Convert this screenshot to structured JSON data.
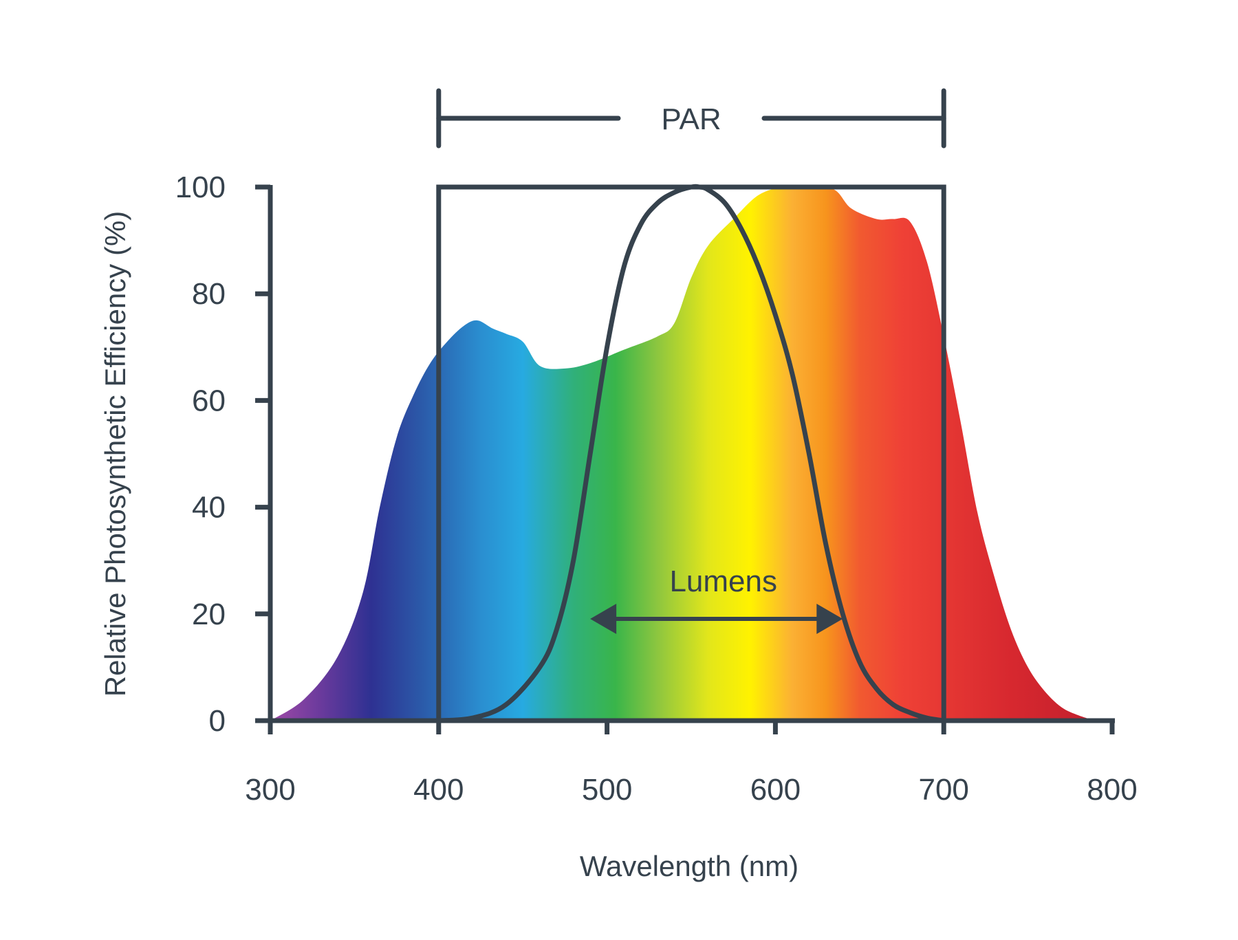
{
  "chart_data": {
    "type": "area",
    "xlabel": "Wavelength (nm)",
    "ylabel": "Relative Photosynthetic Efficiency (%)",
    "xlim": [
      300,
      800
    ],
    "ylim": [
      0,
      100
    ],
    "x_ticks": [
      "300",
      "400",
      "500",
      "600",
      "700",
      "800"
    ],
    "y_ticks": [
      "0",
      "20",
      "40",
      "60",
      "80",
      "100"
    ],
    "grid": false,
    "fill": "visible spectrum gradient (violet to red)",
    "spectrum_colors": [
      "#8e44a6",
      "#2e3192",
      "#2a6bb5",
      "#27a9e1",
      "#39b54a",
      "#8dc63f",
      "#f2e600",
      "#fff200",
      "#f7941d",
      "#ef4136",
      "#be1e2d"
    ],
    "series": [
      {
        "name": "",
        "role": "photosynthetic efficiency (filled area)",
        "x": [
          300,
          320,
          340,
          355,
          365,
          375,
          385,
          395,
          405,
          415,
          423,
          432,
          440,
          450,
          460,
          475,
          490,
          510,
          530,
          540,
          550,
          560,
          575,
          590,
          605,
          620,
          635,
          645,
          660,
          670,
          680,
          690,
          700,
          710,
          720,
          730,
          740,
          750,
          760,
          770,
          780,
          790
        ],
        "y": [
          0,
          4,
          12,
          24,
          40,
          53,
          61,
          67,
          71,
          74,
          75,
          73.5,
          72.5,
          71,
          66.5,
          66,
          67,
          69.5,
          72,
          74.5,
          83,
          89,
          94,
          98.5,
          100,
          100,
          99.5,
          96,
          94,
          94,
          93.5,
          86,
          72,
          56,
          39,
          27,
          17,
          10,
          5.5,
          2.5,
          1,
          0
        ]
      },
      {
        "name": "Lumens",
        "role": "luminosity curve (outline)",
        "x": [
          400,
          420,
          440,
          460,
          470,
          480,
          490,
          500,
          510,
          520,
          530,
          540,
          550,
          555,
          560,
          570,
          580,
          590,
          600,
          610,
          620,
          630,
          640,
          650,
          660,
          670,
          680,
          690,
          700
        ],
        "y": [
          0,
          0.5,
          3,
          10,
          17,
          30,
          50,
          70,
          85,
          93,
          97,
          99,
          100,
          100,
          99.5,
          97,
          92,
          85,
          76,
          65,
          50,
          33,
          20,
          11,
          6,
          3,
          1.5,
          0.5,
          0
        ]
      }
    ],
    "annotations": {
      "par": {
        "label": "PAR",
        "range": [
          400,
          700
        ]
      },
      "lumens": {
        "label": "Lumens",
        "arrow_range": [
          490,
          640
        ],
        "arrow_y": 20
      },
      "par_box": {
        "x_range": [
          400,
          700
        ],
        "y_range": [
          0,
          100
        ]
      }
    }
  }
}
